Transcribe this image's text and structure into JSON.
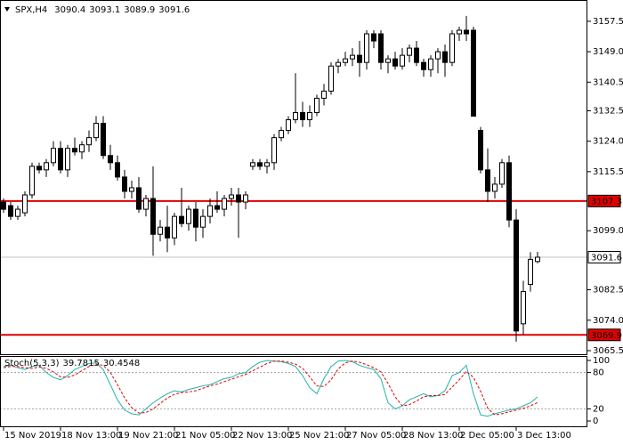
{
  "chart_data": [
    {
      "type": "candlestick",
      "title": "SPX,H4",
      "categories": [
        "15 Nov 2019",
        null,
        null,
        null,
        null,
        null,
        null,
        null,
        "18 Nov 13:00",
        null,
        null,
        null,
        null,
        null,
        null,
        null,
        "19 Nov 21:00",
        null,
        null,
        null,
        null,
        null,
        null,
        null,
        "21 Nov 05:00",
        null,
        null,
        null,
        null,
        null,
        null,
        null,
        "22 Nov 13:00",
        null,
        null,
        null,
        null,
        null,
        null,
        null,
        "25 Nov 21:00",
        null,
        null,
        null,
        null,
        null,
        null,
        null,
        "27 Nov 05:00",
        null,
        null,
        null,
        null,
        null,
        null,
        null,
        "28 Nov 13:00",
        null,
        null,
        null,
        null,
        null,
        null,
        null,
        "2 Dec 05:00",
        null,
        null,
        null,
        null,
        null,
        null,
        null,
        "3 Dec 13:00",
        null,
        null,
        null
      ],
      "open": [
        3107,
        3106,
        3103,
        3104,
        3109,
        3117,
        3116,
        3118,
        3122,
        3116,
        3122,
        3121,
        3123,
        3125,
        3129,
        3120,
        3118,
        3114,
        3110,
        3111,
        3105,
        3108,
        3098,
        3100,
        3097,
        3103,
        3101,
        3105,
        3100,
        3103,
        3106,
        3105,
        3108,
        3109,
        3107,
        3117,
        3118,
        3117,
        3118,
        3125,
        3127,
        3130,
        3132,
        3130,
        3132,
        3136,
        3138,
        3145,
        3146,
        3147,
        3148,
        3146,
        3154,
        3154,
        3146,
        3147,
        3145,
        3148,
        3150,
        3146,
        3144,
        3147,
        3149,
        3146,
        3154,
        3155,
        3155,
        3127,
        3116,
        3110,
        3112,
        3118,
        3102,
        3073,
        3084,
        3090.4
      ],
      "high": [
        3108,
        3107,
        3106,
        3110,
        3118,
        3118,
        3119,
        3124,
        3124,
        3123,
        3125,
        3124,
        3127,
        3131,
        3131,
        3123,
        3120,
        3116,
        3113,
        3114,
        3109,
        3117,
        3102,
        3106,
        3104,
        3111,
        3106,
        3107,
        3105,
        3108,
        3110,
        3109,
        3111,
        3111,
        3110,
        3119,
        3119,
        3119,
        3126,
        3128,
        3131,
        3143,
        3135,
        3134,
        3137,
        3140,
        3146,
        3147,
        3149,
        3150,
        3152,
        3155,
        3155,
        3155,
        3148,
        3149,
        3150,
        3151,
        3152,
        3147,
        3148,
        3150,
        3151,
        3155,
        3156,
        3159,
        3156,
        3128,
        3122,
        3114,
        3119,
        3120,
        3105,
        3085,
        3093,
        3093.1
      ],
      "low": [
        3104,
        3102,
        3102,
        3103,
        3108,
        3115,
        3114,
        3117,
        3115,
        3114,
        3120,
        3119,
        3121,
        3124,
        3119,
        3116,
        3113,
        3108,
        3108,
        3104,
        3103,
        3092,
        3096,
        3093,
        3095,
        3100,
        3099,
        3096,
        3097,
        3101,
        3104,
        3103,
        3106,
        3097,
        3105,
        3116,
        3116,
        3115,
        3116,
        3124,
        3126,
        3129,
        3128,
        3128,
        3131,
        3134,
        3137,
        3143,
        3145,
        3145,
        3142,
        3144,
        3150,
        3144,
        3143,
        3144,
        3144,
        3146,
        3145,
        3142,
        3142,
        3143,
        3142,
        3145,
        3152,
        3152,
        3131,
        3115,
        3107,
        3108,
        3111,
        3100,
        3068,
        3070,
        3082,
        3089.9
      ],
      "close": [
        3105,
        3103,
        3105,
        3109,
        3117,
        3116,
        3118,
        3122,
        3116,
        3122,
        3121,
        3123,
        3125,
        3129,
        3120,
        3118,
        3114,
        3110,
        3111,
        3105,
        3108,
        3098,
        3100,
        3097,
        3103,
        3101,
        3105,
        3100,
        3103,
        3106,
        3105,
        3108,
        3109,
        3107,
        3109,
        3118,
        3117,
        3118,
        3125,
        3127,
        3130,
        3132,
        3130,
        3132,
        3136,
        3138,
        3145,
        3146,
        3147,
        3148,
        3146,
        3154,
        3152,
        3146,
        3147,
        3145,
        3148,
        3150,
        3146,
        3144,
        3147,
        3149,
        3146,
        3154,
        3155,
        3154,
        3131,
        3116,
        3110,
        3112,
        3118,
        3102,
        3071,
        3082,
        3091,
        3091.6
      ],
      "up_color": "#ffffff",
      "down_color": "#000000",
      "outline_color": "#000000",
      "ylim": [
        3064.5,
        3162.7
      ],
      "yticks": [
        3157.5,
        {
          "value": 3149.0,
          "label": "3149.0"
        },
        3140.5,
        3132.5,
        {
          "value": 3124.0,
          "label": "3124.0"
        },
        3115.5,
        {
          "value": 3099.0,
          "label": "3099.0"
        },
        3082.5,
        {
          "value": 3074.0,
          "label": "3074.0"
        },
        3065.5
      ],
      "hlines": [
        {
          "value": 3107.3,
          "color": "#e00000",
          "label_bg": "#e00000",
          "label_color": "#ffffff"
        },
        {
          "value": 3091.6,
          "color": "#c0c0c0",
          "label_bg": "#ffffff",
          "label_color": "#000000"
        },
        {
          "value": 3069.9,
          "color": "#e00000",
          "label_bg": "#e00000",
          "label_color": "#ffffff"
        }
      ]
    },
    {
      "type": "line",
      "title": "Stoch(5,3,3)",
      "series": [
        {
          "color": "#20b2aa",
          "dash": false,
          "values": [
            90,
            92,
            88,
            85,
            90,
            92,
            80,
            72,
            68,
            75,
            85,
            90,
            95,
            96,
            85,
            60,
            35,
            18,
            12,
            10,
            20,
            30,
            38,
            45,
            50,
            48,
            52,
            55,
            58,
            60,
            65,
            70,
            72,
            78,
            80,
            90,
            97,
            100,
            99,
            98,
            95,
            90,
            75,
            55,
            45,
            70,
            90,
            99,
            100,
            98,
            92,
            88,
            85,
            70,
            30,
            20,
            25,
            35,
            40,
            45,
            40,
            42,
            50,
            75,
            80,
            92,
            45,
            10,
            8,
            12,
            15,
            18,
            20,
            25,
            30,
            39.7815
          ]
        },
        {
          "color": "#e00000",
          "dash": true,
          "values": [
            88,
            90,
            90,
            88,
            87,
            89,
            87,
            81,
            73,
            72,
            76,
            83,
            90,
            94,
            92,
            80,
            60,
            38,
            22,
            13,
            14,
            20,
            29,
            38,
            44,
            47,
            48,
            50,
            54,
            58,
            61,
            65,
            69,
            73,
            77,
            83,
            89,
            95,
            99,
            99,
            97,
            94,
            87,
            73,
            58,
            57,
            68,
            86,
            96,
            99,
            97,
            93,
            88,
            81,
            62,
            40,
            25,
            27,
            33,
            40,
            42,
            42,
            44,
            56,
            68,
            82,
            72,
            49,
            21,
            10,
            12,
            15,
            18,
            21,
            25,
            30.4548
          ]
        }
      ],
      "ylim": [
        -10.3,
        105.9
      ],
      "yticks": [
        100,
        80,
        20,
        0
      ],
      "levels": [
        80,
        20
      ]
    }
  ]
}
